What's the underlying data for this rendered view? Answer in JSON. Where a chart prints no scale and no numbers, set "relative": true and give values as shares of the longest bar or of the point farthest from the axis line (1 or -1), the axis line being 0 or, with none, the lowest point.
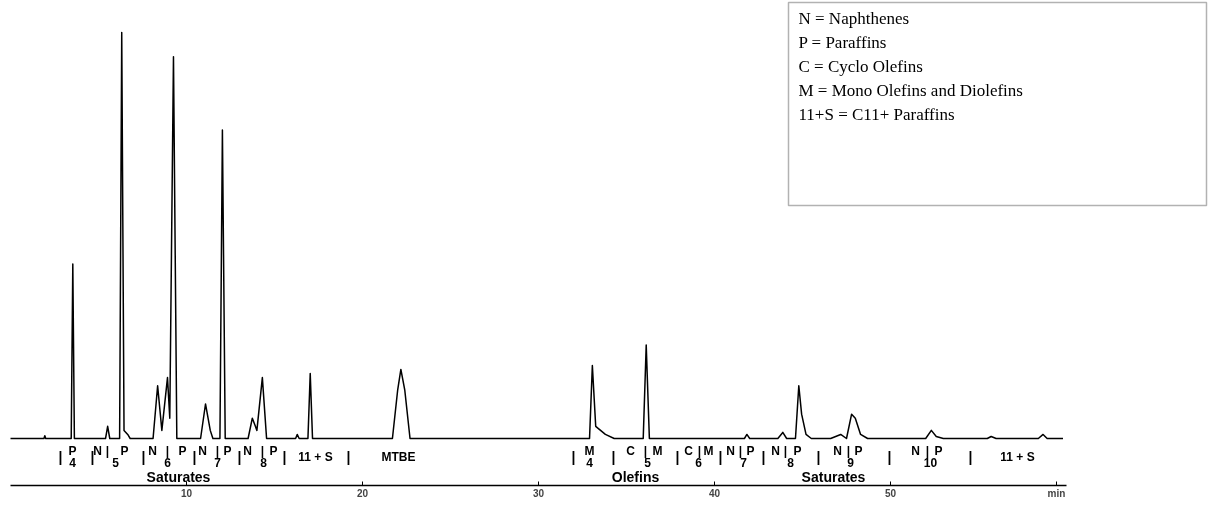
{
  "chart_data": {
    "type": "line",
    "relative": true,
    "color": "#000000",
    "xlim": [
      0,
      60
    ],
    "xticks": [
      10,
      20,
      30,
      40,
      50
    ],
    "x": [
      0,
      1.9,
      1.95,
      2.0,
      3.45,
      3.54,
      3.63,
      5.4,
      5.52,
      5.64,
      6.2,
      6.32,
      6.45,
      6.66,
      6.8,
      8.1,
      8.36,
      8.6,
      8.92,
      9.05,
      9.26,
      9.45,
      10.8,
      11.08,
      11.35,
      11.5,
      11.9,
      12.04,
      12.2,
      13.5,
      13.74,
      14.0,
      14.31,
      14.55,
      16.2,
      16.29,
      16.4,
      16.9,
      17.03,
      17.16,
      21.7,
      22.0,
      22.18,
      22.4,
      22.7,
      32.9,
      33.06,
      33.25,
      33.8,
      34.3,
      35.95,
      36.12,
      36.3,
      41.7,
      41.84,
      42.0,
      43.6,
      43.88,
      44.1,
      44.6,
      44.79,
      44.95,
      45.2,
      45.5,
      46.6,
      47.17,
      47.5,
      47.79,
      48.0,
      48.3,
      48.7,
      52.0,
      52.32,
      52.6,
      53.0,
      55.5,
      55.72,
      56.0,
      58.4,
      58.67,
      58.9,
      59.8
    ],
    "values": [
      0,
      0,
      0.007,
      0,
      0,
      0.43,
      0,
      0,
      0.03,
      0,
      0,
      1.0,
      0.02,
      0.01,
      0,
      0,
      0.13,
      0.02,
      0.15,
      0.05,
      0.94,
      0,
      0,
      0.085,
      0.02,
      0,
      0,
      0.76,
      0,
      0,
      0.05,
      0.02,
      0.15,
      0,
      0,
      0.01,
      0,
      0,
      0.16,
      0,
      0,
      0.12,
      0.17,
      0.12,
      0,
      0,
      0.18,
      0.03,
      0.01,
      0,
      0,
      0.23,
      0,
      0,
      0.01,
      0,
      0,
      0.015,
      0,
      0,
      0.13,
      0.06,
      0.01,
      0,
      0,
      0.01,
      0,
      0.06,
      0.05,
      0.01,
      0,
      0,
      0.02,
      0.005,
      0,
      0,
      0.005,
      0,
      0,
      0.01,
      0,
      0
    ],
    "annotations": [
      "N = Naphthenes",
      "P = Paraffins",
      "C = Cyclo Olefins",
      "M = Mono Olefins and Diolefins",
      "11+S = C11+ Paraffins",
      "|",
      "P",
      "4",
      "|",
      "N",
      "|",
      "P",
      "5",
      "|",
      "N",
      "|",
      "P",
      "6",
      "|",
      "N",
      "|",
      "P",
      "7",
      "|",
      "N",
      "|",
      "P",
      "8",
      "|",
      "11 + S",
      "|",
      "MTBE",
      "|",
      "M",
      "4",
      "|",
      "C",
      "|",
      "M",
      "5",
      "|",
      "C",
      "|",
      "M",
      "6",
      "|",
      "N",
      "|",
      "P",
      "7",
      "|",
      "N",
      "|",
      "P",
      "8",
      "|",
      "N",
      "|",
      "P",
      "9",
      "|",
      "N",
      "|",
      "P",
      "10",
      "|",
      "11 + S",
      "Saturates",
      "Olefins",
      "Saturates",
      "min"
    ]
  }
}
